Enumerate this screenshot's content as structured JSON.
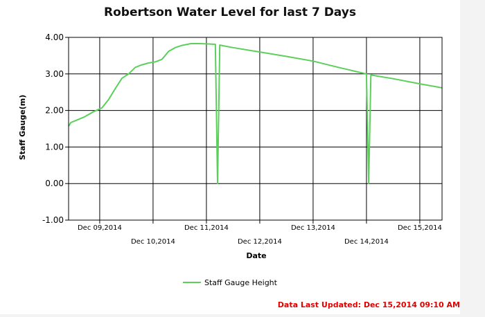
{
  "chart_data": {
    "type": "line",
    "title": "Robertson Water Level for last 7 Days",
    "xlabel": "Date",
    "ylabel": "Staff Gauge(m)",
    "ylim": [
      -1.0,
      4.0
    ],
    "y_ticks": [
      "4.00",
      "3.00",
      "2.00",
      "1.00",
      "0.00",
      "-1.00"
    ],
    "y_tick_values": [
      4,
      3,
      2,
      1,
      0,
      -1
    ],
    "xlim": [
      "2014-12-08 10:00",
      "2014-12-15 10:00"
    ],
    "x_ticks": [
      {
        "label": "Dec 09,2014",
        "at": "2014-12-09 00:00",
        "row": 1
      },
      {
        "label": "Dec 10,2014",
        "at": "2014-12-10 00:00",
        "row": 2
      },
      {
        "label": "Dec 11,2014",
        "at": "2014-12-11 00:00",
        "row": 1
      },
      {
        "label": "Dec 12,2014",
        "at": "2014-12-12 00:00",
        "row": 2
      },
      {
        "label": "Dec 13,2014",
        "at": "2014-12-13 00:00",
        "row": 1
      },
      {
        "label": "Dec 14,2014",
        "at": "2014-12-14 00:00",
        "row": 2
      },
      {
        "label": "Dec 15,2014",
        "at": "2014-12-15 00:00",
        "row": 1
      }
    ],
    "grid": true,
    "legend_position": "bottom-center",
    "series": [
      {
        "name": "Staff Gauge Height",
        "color": "#5ad05a",
        "points": [
          [
            "2014-12-08 10:00",
            1.57
          ],
          [
            "2014-12-08 11:00",
            1.67
          ],
          [
            "2014-12-08 13:00",
            1.72
          ],
          [
            "2014-12-08 17:00",
            1.82
          ],
          [
            "2014-12-08 21:00",
            1.96
          ],
          [
            "2014-12-09 01:00",
            2.07
          ],
          [
            "2014-12-09 04:00",
            2.3
          ],
          [
            "2014-12-09 07:00",
            2.6
          ],
          [
            "2014-12-09 10:00",
            2.88
          ],
          [
            "2014-12-09 13:00",
            3.0
          ],
          [
            "2014-12-09 16:00",
            3.18
          ],
          [
            "2014-12-09 19:00",
            3.25
          ],
          [
            "2014-12-09 22:00",
            3.3
          ],
          [
            "2014-12-10 01:00",
            3.33
          ],
          [
            "2014-12-10 04:00",
            3.4
          ],
          [
            "2014-12-10 07:00",
            3.62
          ],
          [
            "2014-12-10 10:00",
            3.72
          ],
          [
            "2014-12-10 13:00",
            3.78
          ],
          [
            "2014-12-10 17:00",
            3.83
          ],
          [
            "2014-12-10 21:00",
            3.83
          ],
          [
            "2014-12-11 01:00",
            3.82
          ],
          [
            "2014-12-11 04:00",
            3.81
          ],
          [
            "2014-12-11 05:00",
            0.0
          ],
          [
            "2014-12-11 06:00",
            3.79
          ],
          [
            "2014-12-11 12:00",
            3.72
          ],
          [
            "2014-12-12 00:00",
            3.6
          ],
          [
            "2014-12-12 12:00",
            3.48
          ],
          [
            "2014-12-13 00:00",
            3.35
          ],
          [
            "2014-12-13 12:00",
            3.17
          ],
          [
            "2014-12-14 00:00",
            3.0
          ],
          [
            "2014-12-14 01:00",
            0.0
          ],
          [
            "2014-12-14 02:00",
            2.97
          ],
          [
            "2014-12-14 12:00",
            2.87
          ],
          [
            "2014-12-15 00:00",
            2.73
          ],
          [
            "2014-12-15 10:00",
            2.62
          ]
        ]
      }
    ]
  },
  "footer": {
    "last_updated": "Data Last Updated: Dec 15,2014 09:10 AM",
    "color": "#e00000"
  }
}
